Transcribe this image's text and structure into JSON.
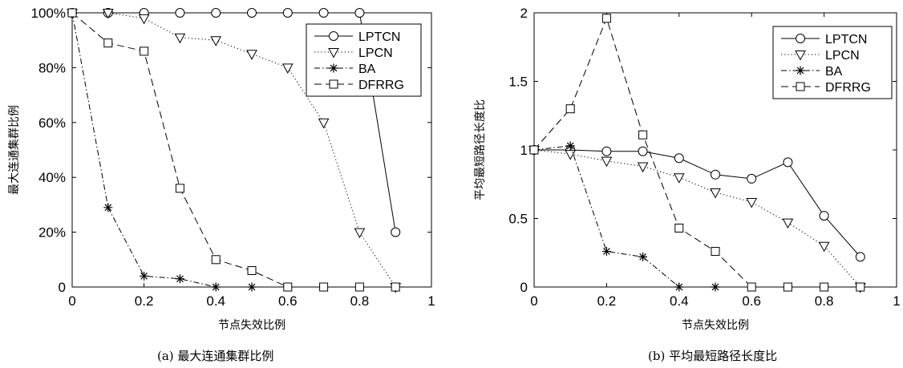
{
  "chart_data": [
    {
      "type": "line",
      "caption": "(a) 最大连通集群比例",
      "xlabel": "节点失效比例",
      "ylabel": "最大连通集群比例",
      "xlim": [
        0,
        1
      ],
      "ylim": [
        0,
        100
      ],
      "xticks": [
        0,
        0.2,
        0.4,
        0.6,
        0.8,
        1
      ],
      "xtick_labels": [
        "0",
        "0.2",
        "0.4",
        "0.6",
        "0.8",
        "1"
      ],
      "yticks": [
        0,
        20,
        40,
        60,
        80,
        100
      ],
      "ytick_labels": [
        "0",
        "20%",
        "40%",
        "60%",
        "80%",
        "100%"
      ],
      "grid": false,
      "legend_position": "top-right",
      "x": [
        0,
        0.1,
        0.2,
        0.3,
        0.4,
        0.5,
        0.6,
        0.7,
        0.8,
        0.9
      ],
      "series": [
        {
          "name": "LPTCN",
          "marker": "circle",
          "dash": "solid",
          "values": [
            100,
            100,
            100,
            100,
            100,
            100,
            100,
            100,
            100,
            20
          ]
        },
        {
          "name": "LPCN",
          "marker": "triangle-down",
          "dash": "dotted",
          "values": [
            100,
            100,
            98,
            91,
            90,
            85,
            80,
            60,
            20,
            0
          ]
        },
        {
          "name": "BA",
          "marker": "asterisk",
          "dash": "dashdot",
          "values": [
            100,
            29,
            4,
            3,
            0,
            0,
            0,
            0,
            0,
            0
          ]
        },
        {
          "name": "DFRRG",
          "marker": "square",
          "dash": "dashed",
          "values": [
            100,
            89,
            86,
            36,
            10,
            6,
            0,
            0,
            0,
            0
          ]
        }
      ]
    },
    {
      "type": "line",
      "caption": "(b) 平均最短路径长度比",
      "xlabel": "节点失效比例",
      "ylabel": "平均最短路径长度比",
      "xlim": [
        0,
        1
      ],
      "ylim": [
        0,
        2
      ],
      "xticks": [
        0,
        0.2,
        0.4,
        0.6,
        0.8,
        1
      ],
      "xtick_labels": [
        "0",
        "0.2",
        "0.4",
        "0.6",
        "0.8",
        "1"
      ],
      "yticks": [
        0,
        0.5,
        1,
        1.5,
        2
      ],
      "ytick_labels": [
        "0",
        "0.5",
        "1",
        "1.5",
        "2"
      ],
      "grid": false,
      "legend_position": "top-right",
      "x": [
        0,
        0.1,
        0.2,
        0.3,
        0.4,
        0.5,
        0.6,
        0.7,
        0.8,
        0.9
      ],
      "series": [
        {
          "name": "LPTCN",
          "marker": "circle",
          "dash": "solid",
          "values": [
            1.0,
            1.0,
            0.99,
            0.99,
            0.94,
            0.82,
            0.79,
            0.91,
            0.52,
            0.22
          ]
        },
        {
          "name": "LPCN",
          "marker": "triangle-down",
          "dash": "dotted",
          "values": [
            1.0,
            0.97,
            0.92,
            0.88,
            0.8,
            0.69,
            0.62,
            0.47,
            0.3,
            0.0
          ]
        },
        {
          "name": "BA",
          "marker": "asterisk",
          "dash": "dashdot",
          "values": [
            1.0,
            1.03,
            0.26,
            0.22,
            0.0,
            0.0,
            0.0,
            0.0,
            0.0,
            0.0
          ]
        },
        {
          "name": "DFRRG",
          "marker": "square",
          "dash": "dashed",
          "values": [
            1.0,
            1.3,
            1.96,
            1.11,
            0.43,
            0.26,
            0.0,
            0.0,
            0.0,
            0.0
          ]
        }
      ]
    }
  ]
}
